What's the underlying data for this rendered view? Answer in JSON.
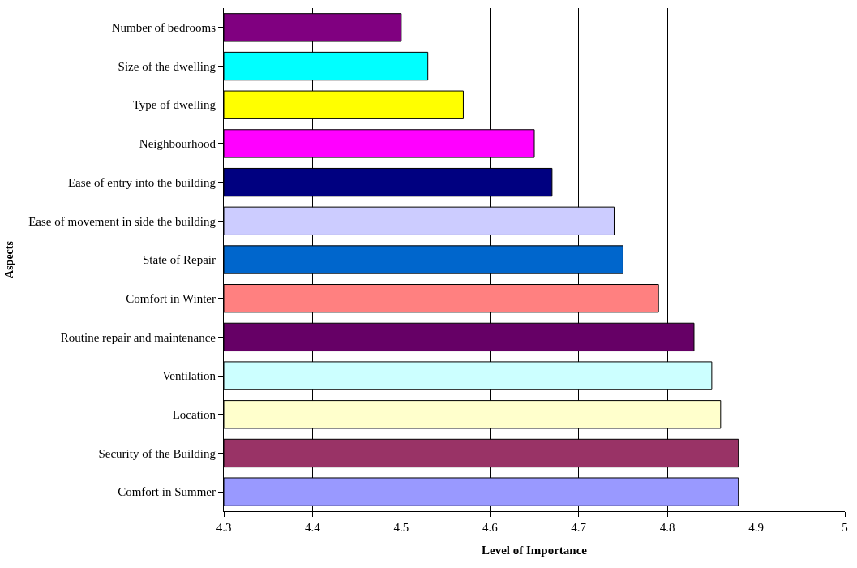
{
  "chart_data": {
    "type": "bar",
    "orientation": "horizontal",
    "xlabel": "Level of Importance",
    "ylabel": "Aspects",
    "categories": [
      "Number of bedrooms",
      "Size of the dwelling",
      "Type of dwelling",
      "Neighbourhood",
      "Ease of entry into the building",
      "Ease of movement in side the building",
      "State of Repair",
      "Comfort in Winter",
      "Routine repair and maintenance",
      "Ventilation",
      "Location",
      "Security of the Building",
      "Comfort in Summer"
    ],
    "values": [
      4.5,
      4.53,
      4.57,
      4.65,
      4.67,
      4.74,
      4.75,
      4.79,
      4.83,
      4.85,
      4.86,
      4.88,
      4.88
    ],
    "colors": [
      "#800080",
      "#00ffff",
      "#ffff00",
      "#ff00ff",
      "#000080",
      "#ccccff",
      "#0066cc",
      "#ff8080",
      "#660066",
      "#ccffff",
      "#ffffcc",
      "#993366",
      "#9999ff"
    ],
    "xlim": [
      4.3,
      5
    ],
    "xticks": [
      4.3,
      4.4,
      4.5,
      4.6,
      4.7,
      4.8,
      4.9,
      5
    ],
    "grid": "x"
  }
}
